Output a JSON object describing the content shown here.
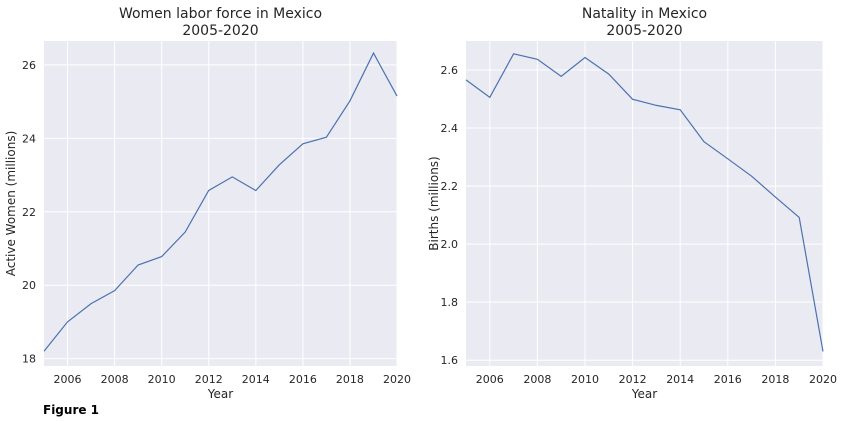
{
  "figure": {
    "caption": "Figure 1"
  },
  "colors": {
    "background": "#eaeaf2",
    "grid": "#ffffff",
    "line": "#4c72b0"
  },
  "chart_data": [
    {
      "type": "line",
      "title": "Women labor force in Mexico\n2005-2020",
      "xlabel": "Year",
      "ylabel": "Active Women (millions)",
      "x": [
        2005,
        2006,
        2007,
        2008,
        2009,
        2010,
        2011,
        2012,
        2013,
        2014,
        2015,
        2016,
        2017,
        2018,
        2019,
        2020
      ],
      "series": [
        {
          "values": [
            18.2,
            19.0,
            19.5,
            19.85,
            20.55,
            20.78,
            21.45,
            22.58,
            22.95,
            22.58,
            23.28,
            23.85,
            24.03,
            25.02,
            26.32,
            25.15
          ]
        }
      ],
      "xlim": [
        2005,
        2020
      ],
      "ylim": [
        17.8,
        26.65
      ],
      "xticks": [
        2006,
        2008,
        2010,
        2012,
        2014,
        2016,
        2018,
        2020
      ],
      "yticks": [
        18,
        20,
        22,
        24,
        26
      ],
      "grid": true
    },
    {
      "type": "line",
      "title": "Natality in Mexico\n2005-2020",
      "xlabel": "Year",
      "ylabel": "Births (millions)",
      "x": [
        2005,
        2006,
        2007,
        2008,
        2009,
        2010,
        2011,
        2012,
        2013,
        2014,
        2015,
        2016,
        2017,
        2018,
        2019,
        2020
      ],
      "series": [
        {
          "values": [
            2.566,
            2.506,
            2.656,
            2.637,
            2.578,
            2.643,
            2.586,
            2.499,
            2.478,
            2.463,
            2.353,
            2.294,
            2.234,
            2.162,
            2.092,
            1.63
          ]
        }
      ],
      "xlim": [
        2005,
        2020
      ],
      "ylim": [
        1.58,
        2.7
      ],
      "xticks": [
        2006,
        2008,
        2010,
        2012,
        2014,
        2016,
        2018,
        2020
      ],
      "yticks": [
        1.6,
        1.8,
        2.0,
        2.2,
        2.4,
        2.6
      ],
      "grid": true
    }
  ]
}
